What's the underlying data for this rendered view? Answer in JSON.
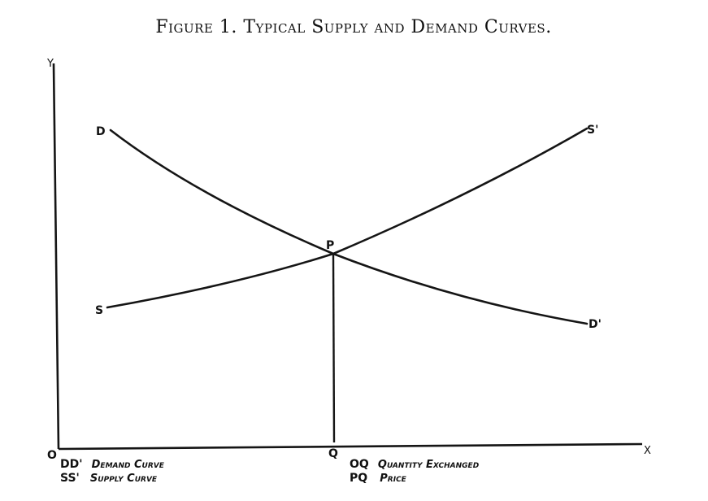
{
  "title": "Figure 1.  Typical Supply and Demand Curves.",
  "axes": {
    "y_label": "Y",
    "x_label": "X",
    "origin_label": "O"
  },
  "point_labels": {
    "d_start": "D",
    "d_end": "D'",
    "s_start": "S",
    "s_end": "S'",
    "intersection": "P",
    "quantity_foot": "Q"
  },
  "legend": [
    {
      "key": "DD'",
      "desc": "Demand Curve"
    },
    {
      "key": "SS'",
      "desc": "Supply Curve"
    },
    {
      "key": "OQ",
      "desc": "Quantity Exchanged"
    },
    {
      "key": "PQ",
      "desc": "Price"
    }
  ],
  "colors": {
    "ink": "#151515",
    "paper": "#ffffff"
  }
}
